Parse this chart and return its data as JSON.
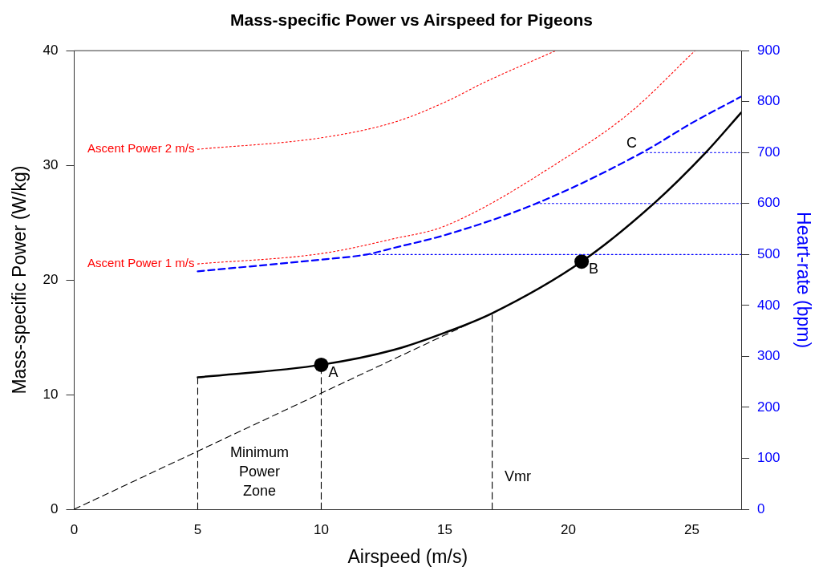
{
  "chart_data": {
    "type": "line",
    "title": "Mass-specific Power vs Airspeed for Pigeons",
    "xlabel": "Airspeed (m/s)",
    "ylabel": "Mass-specific Power (W/kg)",
    "y2label": "Heart-rate (bpm)",
    "xlim": [
      0,
      27
    ],
    "xticks": [
      0,
      5,
      10,
      15,
      20,
      25
    ],
    "ylim": [
      0,
      40
    ],
    "yticks": [
      0,
      10,
      20,
      30,
      40
    ],
    "y2lim": [
      0,
      900
    ],
    "y2ticks": [
      0,
      100,
      200,
      300,
      400,
      500,
      600,
      700,
      800,
      900
    ],
    "grid": false,
    "legend": false,
    "marker": "none",
    "series": [
      {
        "color": "#000000",
        "line_style": "solid",
        "x": [
          5,
          10,
          12.94,
          15,
          16.92,
          20.54,
          23.48,
          25.56,
          27
        ],
        "values": [
          11.5,
          12.6,
          13.9,
          15.4,
          17.1,
          21.6,
          26.7,
          31.1,
          34.6
        ]
      },
      {
        "color": "#0000ff",
        "line_style": "dashed",
        "axis": "y2",
        "x": [
          5,
          10,
          11.84,
          12.94,
          15,
          18.7,
          22.99,
          25,
          27
        ],
        "values": [
          467,
          490,
          500,
          513,
          538,
          600,
          700,
          758,
          810
        ]
      },
      {
        "name": "Ascent Power 1 m/s",
        "color": "#ff0000",
        "line_style": "dotted",
        "x": [
          5,
          10,
          12.94,
          15,
          20,
          22.5,
          25.13
        ],
        "values": [
          21.4,
          22.3,
          23.6,
          24.7,
          30.8,
          34.6,
          40
        ]
      },
      {
        "name": "Ascent Power 2 m/s",
        "color": "#ff0000",
        "line_style": "dotted",
        "x": [
          5,
          10,
          12.94,
          15,
          16.62,
          19.5
        ],
        "values": [
          31.4,
          32.4,
          33.75,
          35.5,
          37.25,
          40
        ]
      },
      {
        "color": "#000000",
        "line_style": "dashed",
        "x": [
          0,
          15.9
        ],
        "values": [
          0,
          16.1
        ]
      },
      {
        "color": "#000000",
        "line_style": "dashed",
        "x": [
          5,
          5
        ],
        "values": [
          0,
          11.5
        ]
      },
      {
        "color": "#000000",
        "line_style": "dashed",
        "x": [
          10,
          10
        ],
        "values": [
          0,
          12.6
        ]
      },
      {
        "color": "#000000",
        "line_style": "dashed",
        "x": [
          16.92,
          16.92
        ],
        "values": [
          0,
          17.1
        ]
      },
      {
        "color": "#0000ff",
        "line_style": "dotted",
        "axis": "y2",
        "x": [
          11.84,
          27
        ],
        "values": [
          500,
          500
        ]
      },
      {
        "color": "#0000ff",
        "line_style": "dotted",
        "axis": "y2",
        "x": [
          18.7,
          27
        ],
        "values": [
          600,
          600
        ]
      },
      {
        "color": "#0000ff",
        "line_style": "dotted",
        "axis": "y2",
        "x": [
          22.99,
          27
        ],
        "values": [
          700,
          700
        ]
      },
      {
        "type": "scatter",
        "marker": "circle",
        "color": "#000000",
        "x": [
          10,
          20.54
        ],
        "values": [
          12.6,
          21.6
        ]
      }
    ],
    "annotations": [
      {
        "text": "A",
        "x": 10,
        "y": 12.6
      },
      {
        "text": "B",
        "x": 20.54,
        "y": 21.6
      },
      {
        "text": "C",
        "x": 22.99,
        "y": 31.11
      },
      {
        "text": "Vmr",
        "x": 16.92,
        "y": 0
      },
      "Minimum Power Zone"
    ]
  }
}
